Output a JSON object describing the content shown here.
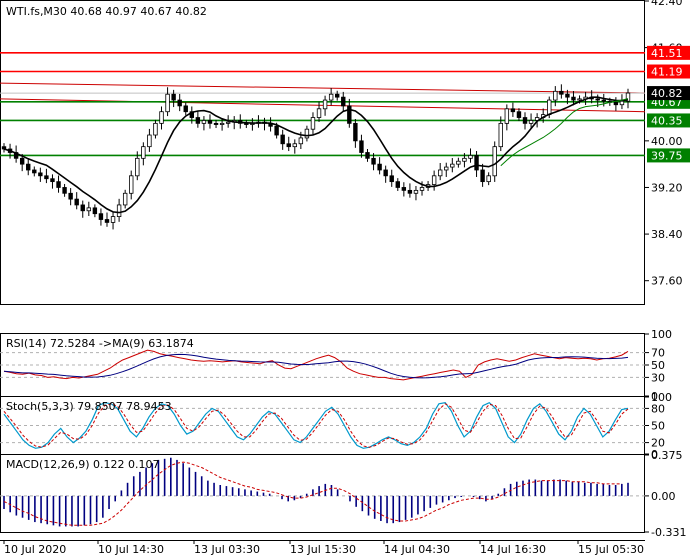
{
  "chart_data": [
    {
      "type": "candlestick",
      "title": "WTI.fs,M30  40.68 40.97 40.67 40.82",
      "ylim": [
        37.2,
        42.4
      ],
      "y_ticks": [
        {
          "label": "42.40",
          "value": 42.4
        },
        {
          "label": "41.60",
          "value": 41.6
        },
        {
          "label": "40.82",
          "value": 40.82
        },
        {
          "label": "40.00",
          "value": 40.0
        },
        {
          "label": "39.20",
          "value": 39.2
        },
        {
          "label": "38.40",
          "value": 38.4
        },
        {
          "label": "37.60",
          "value": 37.6
        }
      ],
      "levels": [
        {
          "label": "41.51",
          "value": 41.51,
          "color": "#ff0000"
        },
        {
          "label": "41.19",
          "value": 41.19,
          "color": "#ff0000"
        },
        {
          "label": "40.67",
          "value": 40.67,
          "color": "#008000"
        },
        {
          "label": "40.35",
          "value": 40.35,
          "color": "#008000"
        },
        {
          "label": "39.75",
          "value": 39.75,
          "color": "#008000"
        }
      ],
      "current_price": {
        "label": "40.82",
        "value": 40.82
      },
      "close_series": [
        39.86,
        39.8,
        39.7,
        39.6,
        39.5,
        39.45,
        39.4,
        39.35,
        39.3,
        39.2,
        39.1,
        39.0,
        38.9,
        38.8,
        38.85,
        38.75,
        38.65,
        38.6,
        38.7,
        38.9,
        39.1,
        39.4,
        39.7,
        39.9,
        40.1,
        40.3,
        40.5,
        40.8,
        40.7,
        40.6,
        40.5,
        40.4,
        40.3,
        40.35,
        40.3,
        40.28,
        40.3,
        40.32,
        40.35,
        40.3,
        40.28,
        40.3,
        40.32,
        40.3,
        40.25,
        40.1,
        39.95,
        39.9,
        39.95,
        40.05,
        40.2,
        40.4,
        40.55,
        40.7,
        40.8,
        40.75,
        40.6,
        40.3,
        40.0,
        39.8,
        39.7,
        39.6,
        39.5,
        39.4,
        39.3,
        39.2,
        39.15,
        39.1,
        39.15,
        39.2,
        39.25,
        39.4,
        39.5,
        39.55,
        39.6,
        39.65,
        39.7,
        39.75,
        39.5,
        39.3,
        39.4,
        39.9,
        40.3,
        40.55,
        40.5,
        40.4,
        40.3,
        40.35,
        40.4,
        40.45,
        40.7,
        40.85,
        40.8,
        40.75,
        40.7,
        40.72,
        40.75,
        40.72,
        40.7,
        40.68,
        40.66,
        40.62,
        40.68,
        40.82
      ]
    },
    {
      "type": "line",
      "title": "RSI(14) 72.5284  ->MA(9) 63.1874",
      "ylim": [
        0,
        100
      ],
      "y_ticks": [
        {
          "label": "100",
          "value": 100
        },
        {
          "label": "70",
          "value": 70
        },
        {
          "label": "50",
          "value": 50
        },
        {
          "label": "30",
          "value": 30
        },
        {
          "label": "0",
          "value": 0
        }
      ],
      "rsi": [
        40,
        38,
        36,
        35,
        37,
        34,
        33,
        30,
        31,
        29,
        28,
        30,
        29,
        31,
        33,
        35,
        40,
        45,
        52,
        58,
        62,
        66,
        70,
        74,
        72,
        68,
        66,
        64,
        62,
        60,
        58,
        57,
        56,
        57,
        56,
        55,
        56,
        57,
        55,
        54,
        53,
        52,
        55,
        57,
        50,
        45,
        44,
        48,
        52,
        56,
        60,
        63,
        66,
        62,
        55,
        45,
        40,
        36,
        34,
        32,
        30,
        30,
        28,
        27,
        26,
        28,
        30,
        32,
        34,
        36,
        38,
        40,
        42,
        40,
        30,
        35,
        50,
        55,
        58,
        60,
        58,
        56,
        58,
        62,
        65,
        68,
        66,
        64,
        62,
        60,
        62,
        61,
        60,
        61,
        60,
        58,
        60,
        61,
        63,
        66,
        72
      ]
    },
    {
      "type": "line",
      "title": "Stoch(5,3,3) 79.8507 78.9453",
      "ylim": [
        0,
        100
      ],
      "y_ticks": [
        {
          "label": "100",
          "value": 100
        },
        {
          "label": "80",
          "value": 80
        },
        {
          "label": "50",
          "value": 50
        },
        {
          "label": "20",
          "value": 20
        },
        {
          "label": "0",
          "value": 0
        }
      ],
      "main": [
        70,
        55,
        40,
        25,
        15,
        10,
        12,
        20,
        35,
        45,
        30,
        20,
        28,
        40,
        60,
        85,
        90,
        88,
        80,
        60,
        40,
        30,
        45,
        65,
        80,
        88,
        85,
        70,
        50,
        35,
        40,
        55,
        70,
        80,
        75,
        60,
        45,
        30,
        25,
        35,
        50,
        65,
        75,
        70,
        55,
        40,
        25,
        20,
        30,
        45,
        60,
        75,
        82,
        70,
        50,
        30,
        15,
        10,
        12,
        18,
        25,
        30,
        25,
        18,
        15,
        20,
        30,
        45,
        70,
        88,
        90,
        75,
        50,
        30,
        40,
        65,
        85,
        90,
        80,
        55,
        30,
        20,
        35,
        60,
        80,
        88,
        75,
        55,
        35,
        25,
        40,
        65,
        80,
        70,
        50,
        30,
        40,
        60,
        78,
        80
      ],
      "signal": [
        75,
        62,
        48,
        33,
        22,
        14,
        12,
        16,
        27,
        38,
        35,
        27,
        26,
        34,
        50,
        72,
        85,
        88,
        84,
        70,
        52,
        38,
        40,
        55,
        72,
        84,
        86,
        78,
        62,
        45,
        40,
        48,
        62,
        75,
        77,
        68,
        54,
        40,
        30,
        30,
        42,
        57,
        70,
        72,
        63,
        48,
        33,
        24,
        26,
        38,
        53,
        68,
        78,
        75,
        60,
        40,
        24,
        14,
        12,
        15,
        22,
        28,
        27,
        21,
        17,
        18,
        25,
        38,
        58,
        78,
        88,
        82,
        63,
        42,
        38,
        55,
        75,
        87,
        85,
        68,
        45,
        27,
        28,
        48,
        70,
        84,
        80,
        65,
        45,
        30,
        33,
        52,
        72,
        75,
        60,
        40,
        37,
        52,
        70,
        79
      ]
    },
    {
      "type": "bar",
      "title": "MACD(12,26,9) 0.122 0.107",
      "ylim": [
        -0.331,
        0.375
      ],
      "y_ticks": [
        {
          "label": "0.375",
          "value": 0.375
        },
        {
          "label": "0.00",
          "value": 0.0
        },
        {
          "label": "-0.331",
          "value": -0.331
        }
      ],
      "histogram": [
        -0.12,
        -0.15,
        -0.18,
        -0.2,
        -0.22,
        -0.24,
        -0.25,
        -0.26,
        -0.27,
        -0.28,
        -0.28,
        -0.28,
        -0.28,
        -0.27,
        -0.26,
        -0.24,
        -0.2,
        -0.12,
        -0.05,
        0.05,
        0.12,
        0.18,
        0.22,
        0.26,
        0.3,
        0.33,
        0.34,
        0.35,
        0.33,
        0.3,
        0.26,
        0.22,
        0.18,
        0.14,
        0.12,
        0.1,
        0.09,
        0.08,
        0.07,
        0.06,
        0.05,
        0.04,
        0.03,
        0.02,
        0.0,
        -0.03,
        -0.05,
        -0.04,
        -0.02,
        0.02,
        0.06,
        0.09,
        0.11,
        0.1,
        0.06,
        0.0,
        -0.05,
        -0.1,
        -0.14,
        -0.18,
        -0.21,
        -0.23,
        -0.25,
        -0.25,
        -0.24,
        -0.22,
        -0.2,
        -0.17,
        -0.14,
        -0.11,
        -0.08,
        -0.06,
        -0.04,
        -0.02,
        -0.01,
        0.0,
        -0.01,
        -0.03,
        -0.05,
        -0.03,
        0.02,
        0.07,
        0.11,
        0.13,
        0.14,
        0.15,
        0.15,
        0.14,
        0.14,
        0.15,
        0.15,
        0.14,
        0.13,
        0.13,
        0.12,
        0.12,
        0.11,
        0.11,
        0.1,
        0.1,
        0.11,
        0.12
      ],
      "signal": [
        -0.05,
        -0.08,
        -0.11,
        -0.14,
        -0.16,
        -0.19,
        -0.21,
        -0.23,
        -0.24,
        -0.25,
        -0.26,
        -0.27,
        -0.27,
        -0.27,
        -0.27,
        -0.26,
        -0.25,
        -0.22,
        -0.18,
        -0.13,
        -0.07,
        -0.01,
        0.05,
        0.1,
        0.15,
        0.2,
        0.24,
        0.28,
        0.3,
        0.31,
        0.3,
        0.28,
        0.26,
        0.23,
        0.2,
        0.17,
        0.15,
        0.13,
        0.11,
        0.09,
        0.08,
        0.06,
        0.05,
        0.04,
        0.03,
        0.01,
        -0.01,
        -0.02,
        -0.02,
        -0.01,
        0.01,
        0.03,
        0.05,
        0.07,
        0.07,
        0.05,
        0.02,
        -0.02,
        -0.06,
        -0.1,
        -0.14,
        -0.17,
        -0.2,
        -0.22,
        -0.23,
        -0.23,
        -0.22,
        -0.21,
        -0.19,
        -0.16,
        -0.13,
        -0.11,
        -0.08,
        -0.06,
        -0.04,
        -0.03,
        -0.02,
        -0.02,
        -0.03,
        -0.03,
        -0.01,
        0.02,
        0.05,
        0.08,
        0.1,
        0.12,
        0.13,
        0.14,
        0.14,
        0.14,
        0.14,
        0.14,
        0.13,
        0.13,
        0.13,
        0.12,
        0.12,
        0.11,
        0.11,
        0.11,
        0.11
      ]
    }
  ],
  "x_labels": [
    "10 Jul 2020",
    "10 Jul 14:30",
    "13 Jul 03:30",
    "13 Jul 15:30",
    "14 Jul 04:30",
    "14 Jul 16:30",
    "15 Jul 05:30"
  ]
}
